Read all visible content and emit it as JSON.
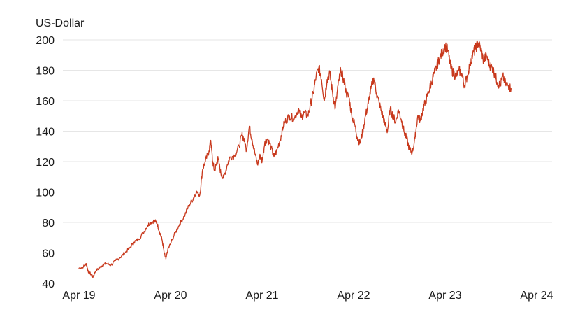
{
  "chart_data": {
    "type": "line",
    "title": "",
    "ylabel": "US-Dollar",
    "xlabel": "",
    "ylim": [
      40,
      200
    ],
    "yticks": [
      40,
      60,
      80,
      100,
      120,
      140,
      160,
      180,
      200
    ],
    "xticks": [
      {
        "label": "Apr 19",
        "t": 0
      },
      {
        "label": "Apr 20",
        "t": 1
      },
      {
        "label": "Apr 21",
        "t": 2
      },
      {
        "label": "Apr 22",
        "t": 3
      },
      {
        "label": "Apr 23",
        "t": 4
      },
      {
        "label": "Apr 24",
        "t": 5
      }
    ],
    "grid": "horizontal",
    "line_color": "#c8391d",
    "series": [
      {
        "points": [
          [
            0.0,
            50
          ],
          [
            0.05,
            51
          ],
          [
            0.08,
            53
          ],
          [
            0.1,
            48
          ],
          [
            0.13,
            46
          ],
          [
            0.15,
            44
          ],
          [
            0.18,
            48
          ],
          [
            0.22,
            50
          ],
          [
            0.26,
            52
          ],
          [
            0.3,
            53
          ],
          [
            0.35,
            52
          ],
          [
            0.4,
            55
          ],
          [
            0.45,
            57
          ],
          [
            0.5,
            60
          ],
          [
            0.55,
            63
          ],
          [
            0.6,
            67
          ],
          [
            0.65,
            69
          ],
          [
            0.7,
            73
          ],
          [
            0.75,
            78
          ],
          [
            0.78,
            80
          ],
          [
            0.82,
            81
          ],
          [
            0.85,
            80
          ],
          [
            0.88,
            74
          ],
          [
            0.91,
            68
          ],
          [
            0.93,
            60
          ],
          [
            0.95,
            56
          ],
          [
            0.97,
            62
          ],
          [
            1.0,
            66
          ],
          [
            1.05,
            73
          ],
          [
            1.1,
            79
          ],
          [
            1.15,
            84
          ],
          [
            1.2,
            91
          ],
          [
            1.25,
            96
          ],
          [
            1.28,
            100
          ],
          [
            1.32,
            98
          ],
          [
            1.35,
            115
          ],
          [
            1.38,
            120
          ],
          [
            1.42,
            127
          ],
          [
            1.44,
            134
          ],
          [
            1.46,
            120
          ],
          [
            1.48,
            114
          ],
          [
            1.5,
            118
          ],
          [
            1.52,
            122
          ],
          [
            1.55,
            112
          ],
          [
            1.58,
            109
          ],
          [
            1.62,
            118
          ],
          [
            1.65,
            123
          ],
          [
            1.7,
            124
          ],
          [
            1.75,
            130
          ],
          [
            1.78,
            138
          ],
          [
            1.8,
            135
          ],
          [
            1.83,
            128
          ],
          [
            1.86,
            143
          ],
          [
            1.89,
            135
          ],
          [
            1.92,
            126
          ],
          [
            1.95,
            118
          ],
          [
            1.98,
            124
          ],
          [
            2.0,
            120
          ],
          [
            2.03,
            133
          ],
          [
            2.06,
            135
          ],
          [
            2.1,
            129
          ],
          [
            2.13,
            123
          ],
          [
            2.16,
            127
          ],
          [
            2.2,
            135
          ],
          [
            2.23,
            143
          ],
          [
            2.26,
            147
          ],
          [
            2.3,
            150
          ],
          [
            2.35,
            148
          ],
          [
            2.4,
            155
          ],
          [
            2.43,
            149
          ],
          [
            2.46,
            152
          ],
          [
            2.5,
            150
          ],
          [
            2.53,
            158
          ],
          [
            2.56,
            165
          ],
          [
            2.59,
            176
          ],
          [
            2.62,
            182
          ],
          [
            2.65,
            174
          ],
          [
            2.68,
            160
          ],
          [
            2.71,
            174
          ],
          [
            2.74,
            178
          ],
          [
            2.77,
            165
          ],
          [
            2.8,
            155
          ],
          [
            2.83,
            170
          ],
          [
            2.86,
            180
          ],
          [
            2.89,
            174
          ],
          [
            2.92,
            165
          ],
          [
            2.95,
            162
          ],
          [
            2.98,
            150
          ],
          [
            3.01,
            145
          ],
          [
            3.04,
            136
          ],
          [
            3.07,
            132
          ],
          [
            3.1,
            140
          ],
          [
            3.13,
            150
          ],
          [
            3.16,
            158
          ],
          [
            3.19,
            168
          ],
          [
            3.22,
            175
          ],
          [
            3.25,
            165
          ],
          [
            3.28,
            158
          ],
          [
            3.31,
            152
          ],
          [
            3.34,
            145
          ],
          [
            3.37,
            140
          ],
          [
            3.4,
            155
          ],
          [
            3.43,
            150
          ],
          [
            3.46,
            146
          ],
          [
            3.49,
            154
          ],
          [
            3.52,
            148
          ],
          [
            3.55,
            140
          ],
          [
            3.58,
            135
          ],
          [
            3.61,
            128
          ],
          [
            3.64,
            126
          ],
          [
            3.67,
            135
          ],
          [
            3.7,
            150
          ],
          [
            3.73,
            147
          ],
          [
            3.76,
            155
          ],
          [
            3.79,
            160
          ],
          [
            3.82,
            166
          ],
          [
            3.85,
            172
          ],
          [
            3.88,
            178
          ],
          [
            3.91,
            183
          ],
          [
            3.94,
            188
          ],
          [
            3.97,
            192
          ],
          [
            4.0,
            196
          ],
          [
            4.03,
            193
          ],
          [
            4.06,
            182
          ],
          [
            4.09,
            178
          ],
          [
            4.12,
            176
          ],
          [
            4.15,
            180
          ],
          [
            4.18,
            178
          ],
          [
            4.21,
            170
          ],
          [
            4.24,
            176
          ],
          [
            4.27,
            184
          ],
          [
            4.3,
            190
          ],
          [
            4.33,
            194
          ],
          [
            4.36,
            198
          ],
          [
            4.39,
            194
          ],
          [
            4.42,
            186
          ],
          [
            4.45,
            190
          ],
          [
            4.48,
            184
          ],
          [
            4.51,
            182
          ],
          [
            4.54,
            178
          ],
          [
            4.57,
            172
          ],
          [
            4.6,
            170
          ],
          [
            4.63,
            176
          ],
          [
            4.66,
            171
          ],
          [
            4.69,
            170
          ],
          [
            4.72,
            168
          ]
        ]
      }
    ]
  }
}
